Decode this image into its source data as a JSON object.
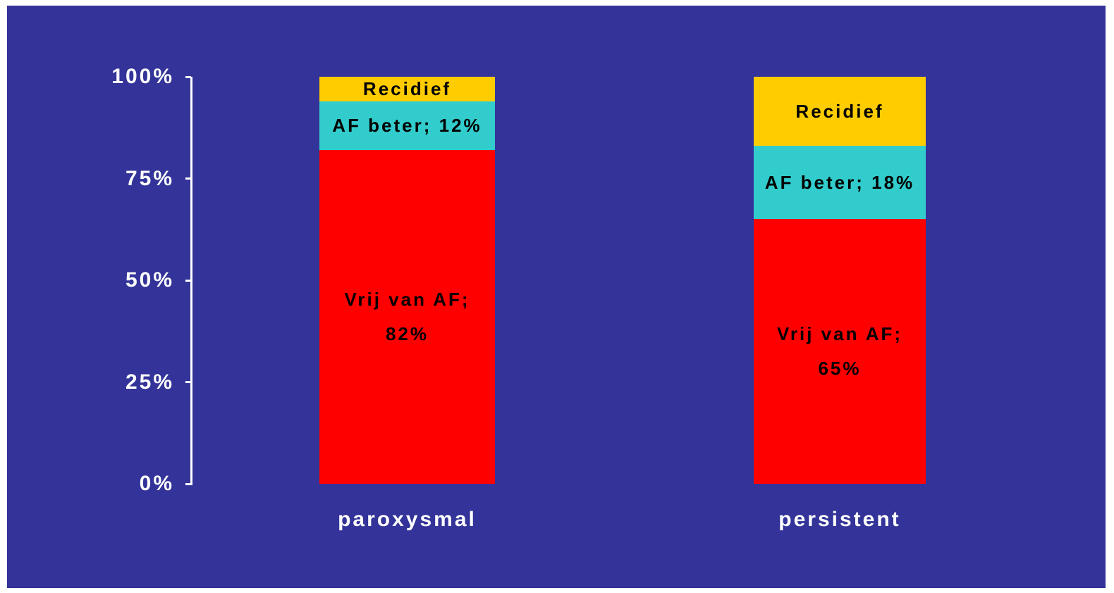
{
  "chart_data": {
    "type": "stacked_bar",
    "categories": [
      "paroxysmal",
      "persistent"
    ],
    "series": [
      {
        "color": "#ff0000",
        "values": [
          82,
          65
        ],
        "value_labels": [
          "Vrij van AF;\n82%",
          "Vrij van AF;\n65%"
        ]
      },
      {
        "color": "#33cccc",
        "values": [
          12,
          18
        ],
        "value_labels": [
          "AF beter; 12%",
          "AF beter; 18%"
        ]
      },
      {
        "color": "#ffcc00",
        "values": [
          6,
          17
        ],
        "value_labels": [
          "Recidief",
          "Recidief"
        ]
      }
    ],
    "ylim": [
      0,
      100
    ],
    "yticks": [
      {
        "value": 0,
        "label": "0%"
      },
      {
        "value": 25,
        "label": "25%"
      },
      {
        "value": 50,
        "label": "50%"
      },
      {
        "value": 75,
        "label": "75%"
      },
      {
        "value": 100,
        "label": "100%"
      }
    ],
    "background": "#333399"
  }
}
